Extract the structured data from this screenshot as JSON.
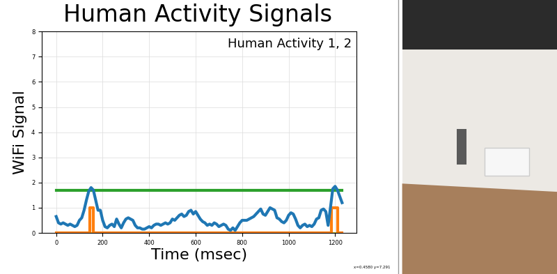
{
  "chart_data": {
    "type": "line",
    "title": "Human Activity Signals",
    "x_label": "Time (msec)",
    "y_label": "WiFi Signal",
    "annotations": [
      "Human Activity 1, 2",
      "x=0.4580 y=7.291"
    ],
    "xlim": [
      -62,
      1292
    ],
    "xticks": [
      0,
      200,
      400,
      600,
      800,
      1000,
      1200
    ],
    "ylim": [
      0,
      8
    ],
    "yticks": [
      0,
      1,
      2,
      3,
      4,
      5,
      6,
      7,
      8
    ],
    "grid": true,
    "tick_labels": true,
    "series": [
      {
        "color": "#bcbd22",
        "line_style": "solid",
        "x": [
          0,
          1230
        ],
        "values": [
          0,
          0
        ]
      },
      {
        "color": "#2ca02c",
        "line_style": "solid",
        "x": [
          0,
          1230
        ],
        "values": [
          1.7,
          1.7
        ]
      },
      {
        "color": "#ff7f0e",
        "line_style": "solid",
        "x": [
          0,
          145,
          145,
          160,
          160,
          1185,
          1185,
          1210,
          1210,
          1230
        ],
        "values": [
          0,
          0,
          1,
          1,
          0,
          0,
          1,
          1,
          0,
          0
        ]
      },
      {
        "color": "#1f77b4",
        "line_style": "solid",
        "x": [
          0,
          10,
          20,
          30,
          40,
          50,
          60,
          70,
          80,
          90,
          100,
          110,
          120,
          130,
          140,
          150,
          160,
          170,
          180,
          190,
          200,
          210,
          220,
          230,
          240,
          250,
          260,
          270,
          280,
          290,
          300,
          310,
          320,
          330,
          340,
          350,
          360,
          370,
          380,
          390,
          400,
          410,
          420,
          430,
          440,
          450,
          460,
          470,
          480,
          490,
          500,
          510,
          520,
          530,
          540,
          550,
          560,
          570,
          580,
          590,
          600,
          610,
          620,
          630,
          640,
          650,
          660,
          670,
          680,
          690,
          700,
          710,
          720,
          730,
          740,
          750,
          760,
          770,
          780,
          790,
          800,
          810,
          820,
          830,
          840,
          850,
          860,
          870,
          880,
          890,
          900,
          910,
          920,
          930,
          940,
          950,
          960,
          970,
          980,
          990,
          1000,
          1010,
          1020,
          1030,
          1040,
          1050,
          1060,
          1070,
          1080,
          1090,
          1100,
          1110,
          1120,
          1130,
          1140,
          1150,
          1160,
          1170,
          1180,
          1190,
          1200,
          1210,
          1220,
          1230
        ],
        "values": [
          0.65,
          0.4,
          0.35,
          0.4,
          0.35,
          0.3,
          0.35,
          0.3,
          0.25,
          0.3,
          0.5,
          0.6,
          0.9,
          1.3,
          1.65,
          1.8,
          1.7,
          1.3,
          0.9,
          0.9,
          0.5,
          0.25,
          0.2,
          0.3,
          0.35,
          0.25,
          0.55,
          0.35,
          0.2,
          0.4,
          0.55,
          0.6,
          0.55,
          0.5,
          0.3,
          0.2,
          0.2,
          0.15,
          0.15,
          0.2,
          0.25,
          0.2,
          0.3,
          0.35,
          0.35,
          0.3,
          0.35,
          0.4,
          0.35,
          0.4,
          0.55,
          0.5,
          0.6,
          0.7,
          0.75,
          0.65,
          0.7,
          0.85,
          0.9,
          0.75,
          0.85,
          0.7,
          0.55,
          0.45,
          0.4,
          0.3,
          0.35,
          0.3,
          0.4,
          0.35,
          0.25,
          0.3,
          0.35,
          0.3,
          0.15,
          0.1,
          0.2,
          0.1,
          0.25,
          0.4,
          0.5,
          0.5,
          0.5,
          0.55,
          0.6,
          0.65,
          0.75,
          0.85,
          0.95,
          0.75,
          0.7,
          0.85,
          1.0,
          0.95,
          0.9,
          0.6,
          0.55,
          0.45,
          0.4,
          0.5,
          0.7,
          0.8,
          0.75,
          0.55,
          0.3,
          0.2,
          0.3,
          0.35,
          0.25,
          0.3,
          0.25,
          0.35,
          0.55,
          0.6,
          0.9,
          0.95,
          0.85,
          0.3,
          1.0,
          1.75,
          1.85,
          1.7,
          1.45,
          1.2
        ]
      }
    ]
  }
}
